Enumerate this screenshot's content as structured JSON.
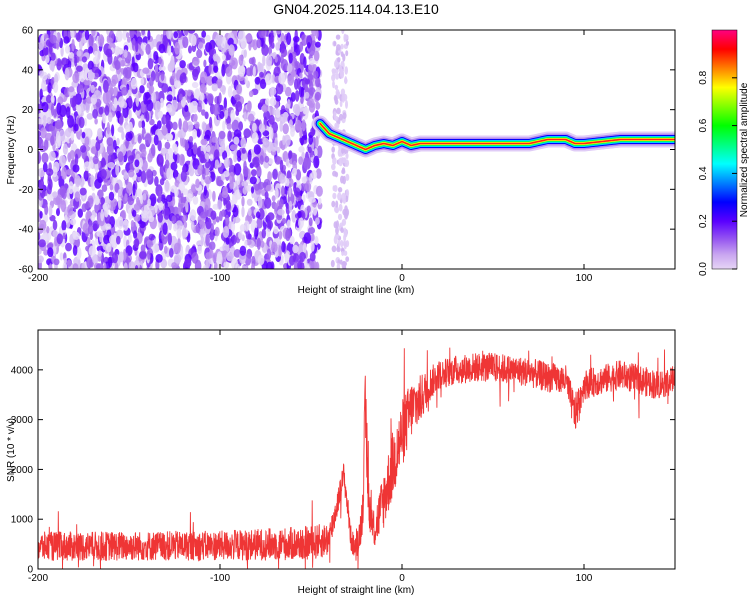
{
  "title": "GN04.2025.114.04.13.E10",
  "chart_data": [
    {
      "type": "heatmap",
      "xlabel": "Height of straight line (km)",
      "ylabel": "Frequency (Hz)",
      "xlim": [
        -200,
        150
      ],
      "ylim": [
        -60,
        60
      ],
      "xticks": [
        -200,
        -100,
        0,
        100
      ],
      "yticks": [
        -60,
        -40,
        -20,
        0,
        20,
        40,
        60
      ],
      "xtick_labels": [
        "-200",
        "-100",
        "0",
        "100"
      ],
      "ytick_labels": [
        "-60",
        "-40",
        "-20",
        "0",
        "20",
        "40",
        "60"
      ],
      "colorbar": {
        "label": "Normalized spectral amplitude",
        "range": [
          0,
          1
        ],
        "ticks": [
          0,
          0.2,
          0.4,
          0.6,
          0.8
        ],
        "tick_labels": [
          "0.0",
          "0.2",
          "0.4",
          "0.6",
          "0.8"
        ]
      },
      "noise_region": {
        "x": [
          -200,
          -45
        ],
        "y": [
          -60,
          60
        ]
      },
      "noise_strip": {
        "x": [
          -38,
          -30
        ],
        "y": [
          -60,
          60
        ]
      },
      "signal_track": {
        "x": [
          -45,
          -40,
          -35,
          -30,
          -25,
          -20,
          -15,
          -10,
          -5,
          0,
          5,
          10,
          20,
          30,
          40,
          50,
          60,
          70,
          80,
          90,
          95,
          100,
          110,
          120,
          130,
          140,
          150
        ],
        "y": [
          13,
          8,
          6,
          4,
          2,
          0,
          2,
          3,
          2,
          4,
          2,
          3,
          3,
          3,
          3,
          3,
          3,
          3,
          5,
          5,
          3,
          3,
          4,
          5,
          5,
          5,
          5
        ]
      }
    },
    {
      "type": "line",
      "xlabel": "Height of straight line (km)",
      "ylabel": "SNR (10 * v/v)",
      "xlim": [
        -200,
        150
      ],
      "ylim": [
        0,
        4800
      ],
      "xticks": [
        -200,
        -100,
        0,
        100
      ],
      "yticks": [
        0,
        1000,
        2000,
        3000,
        4000
      ],
      "xtick_labels": [
        "-200",
        "-100",
        "0",
        "100"
      ],
      "ytick_labels": [
        "0",
        "1000",
        "2000",
        "3000",
        "4000"
      ],
      "line_color": "#ef3535",
      "series": [
        {
          "x": [
            -200,
            -150,
            -100,
            -50,
            -40,
            -35,
            -32,
            -30,
            -28,
            -25,
            -22,
            -20,
            -18,
            -15,
            -10,
            -5,
            0,
            5,
            10,
            15,
            20,
            25,
            30,
            40,
            50,
            60,
            70,
            80,
            90,
            95,
            100,
            110,
            120,
            130,
            140,
            150
          ],
          "values": [
            450,
            460,
            470,
            520,
            600,
            1400,
            1900,
            1300,
            600,
            350,
            1000,
            3000,
            1200,
            800,
            1400,
            2100,
            2700,
            3200,
            3400,
            3700,
            3900,
            3950,
            4000,
            4050,
            4050,
            4000,
            3950,
            3850,
            3800,
            3100,
            3700,
            3800,
            3900,
            3800,
            3700,
            3800
          ],
          "noise_amplitude": [
            300,
            300,
            300,
            350,
            350,
            250,
            250,
            250,
            250,
            250,
            400,
            1200,
            400,
            400,
            600,
            700,
            700,
            600,
            500,
            350,
            300,
            300,
            300,
            300,
            300,
            300,
            300,
            300,
            300,
            400,
            300,
            300,
            300,
            300,
            300,
            300
          ]
        }
      ]
    }
  ]
}
